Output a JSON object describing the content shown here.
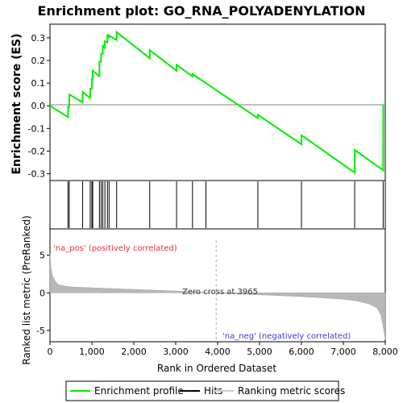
{
  "chart_data": {
    "type": "line",
    "title": "Enrichment plot: GO_RNA_POLYADENYLATION",
    "xlabel": "Rank in Ordered Dataset",
    "ylabel_top": "Enrichment score (ES)",
    "ylabel_bottom": "Ranked list metric (PreRanked)",
    "xlim": [
      0,
      8000
    ],
    "x_ticks": [
      "0",
      "1,000",
      "2,000",
      "3,000",
      "4,000",
      "5,000",
      "6,000",
      "7,000",
      "8,000"
    ],
    "x_tick_values": [
      0,
      1000,
      2000,
      3000,
      4000,
      5000,
      6000,
      7000,
      8000
    ],
    "es_ylim": [
      -0.33,
      0.36
    ],
    "es_ticks": [
      "0.3",
      "0.2",
      "0.1",
      "0.0",
      "-0.1",
      "-0.2",
      "-0.3"
    ],
    "es_tick_values": [
      0.3,
      0.2,
      0.1,
      0.0,
      -0.1,
      -0.2,
      -0.3
    ],
    "metric_ylim": [
      -6.5,
      8.5
    ],
    "metric_ticks": [
      "5",
      "0",
      "-5"
    ],
    "metric_tick_values": [
      5,
      0,
      -5
    ],
    "enrichment_color": "#00ee00",
    "hit_color": "#000000",
    "hits": [
      430,
      460,
      780,
      960,
      1000,
      1020,
      1180,
      1220,
      1260,
      1310,
      1370,
      1410,
      1590,
      2380,
      3020,
      3400,
      3720,
      4960,
      6000,
      7270,
      7950
    ],
    "enrichment_profile": {
      "x": [
        0,
        430,
        431,
        460,
        461,
        780,
        781,
        960,
        961,
        1000,
        1001,
        1020,
        1021,
        1180,
        1181,
        1220,
        1221,
        1260,
        1261,
        1310,
        1311,
        1370,
        1371,
        1410,
        1411,
        1590,
        1591,
        2380,
        2381,
        3020,
        3021,
        3400,
        3401,
        3720,
        3721,
        4960,
        4961,
        6000,
        6001,
        7270,
        7271,
        7950,
        7951
      ],
      "y": [
        0.0,
        -0.05,
        -0.005,
        -0.005,
        0.05,
        0.015,
        0.06,
        0.035,
        0.075,
        0.075,
        0.12,
        0.12,
        0.155,
        0.13,
        0.195,
        0.195,
        0.23,
        0.23,
        0.265,
        0.255,
        0.285,
        0.28,
        0.315,
        0.3,
        0.31,
        0.29,
        0.325,
        0.21,
        0.245,
        0.155,
        0.18,
        0.13,
        0.14,
        0.1,
        0.1,
        -0.055,
        -0.04,
        -0.17,
        -0.13,
        -0.295,
        -0.195,
        -0.285,
        0.005
      ]
    },
    "metric_profile": {
      "x": [
        0,
        20,
        60,
        120,
        200,
        350,
        500,
        800,
        1200,
        2000,
        3000,
        3965,
        5000,
        6000,
        6500,
        7000,
        7300,
        7600,
        7800,
        7900,
        7950,
        8000
      ],
      "y": [
        5.2,
        3.4,
        2.3,
        1.6,
        1.1,
        0.9,
        0.8,
        0.72,
        0.62,
        0.45,
        0.25,
        0.0,
        -0.25,
        -0.5,
        -0.65,
        -0.85,
        -1.05,
        -1.45,
        -2.0,
        -3.0,
        -4.5,
        -6.2
      ]
    },
    "color_band": [
      {
        "start": 0,
        "end": 300,
        "color": "#f0505a"
      },
      {
        "start": 300,
        "end": 1200,
        "color": "#f06068"
      },
      {
        "start": 1200,
        "end": 2150,
        "color": "#f07880"
      },
      {
        "start": 2150,
        "end": 3000,
        "color": "#f59aa8"
      },
      {
        "start": 3000,
        "end": 3500,
        "color": "#fcc6e4"
      },
      {
        "start": 3500,
        "end": 3965,
        "color": "#fcd6ec"
      },
      {
        "start": 3965,
        "end": 4950,
        "color": "#e8e6fa"
      },
      {
        "start": 4950,
        "end": 5900,
        "color": "#d0ccf8"
      },
      {
        "start": 5900,
        "end": 6450,
        "color": "#9c94ee"
      },
      {
        "start": 6450,
        "end": 7700,
        "color": "#6e5ee2"
      },
      {
        "start": 7700,
        "end": 8000,
        "color": "#3a16c8"
      }
    ],
    "zero_cross_rank": 3965,
    "annotations": {
      "pos": "'na_pos' (positively correlated)",
      "neg": "'na_neg' (negatively correlated)",
      "zero_cross": "Zero cross at 3965"
    },
    "legend": [
      "Enrichment profile",
      "Hits",
      "Ranking metric scores"
    ]
  }
}
